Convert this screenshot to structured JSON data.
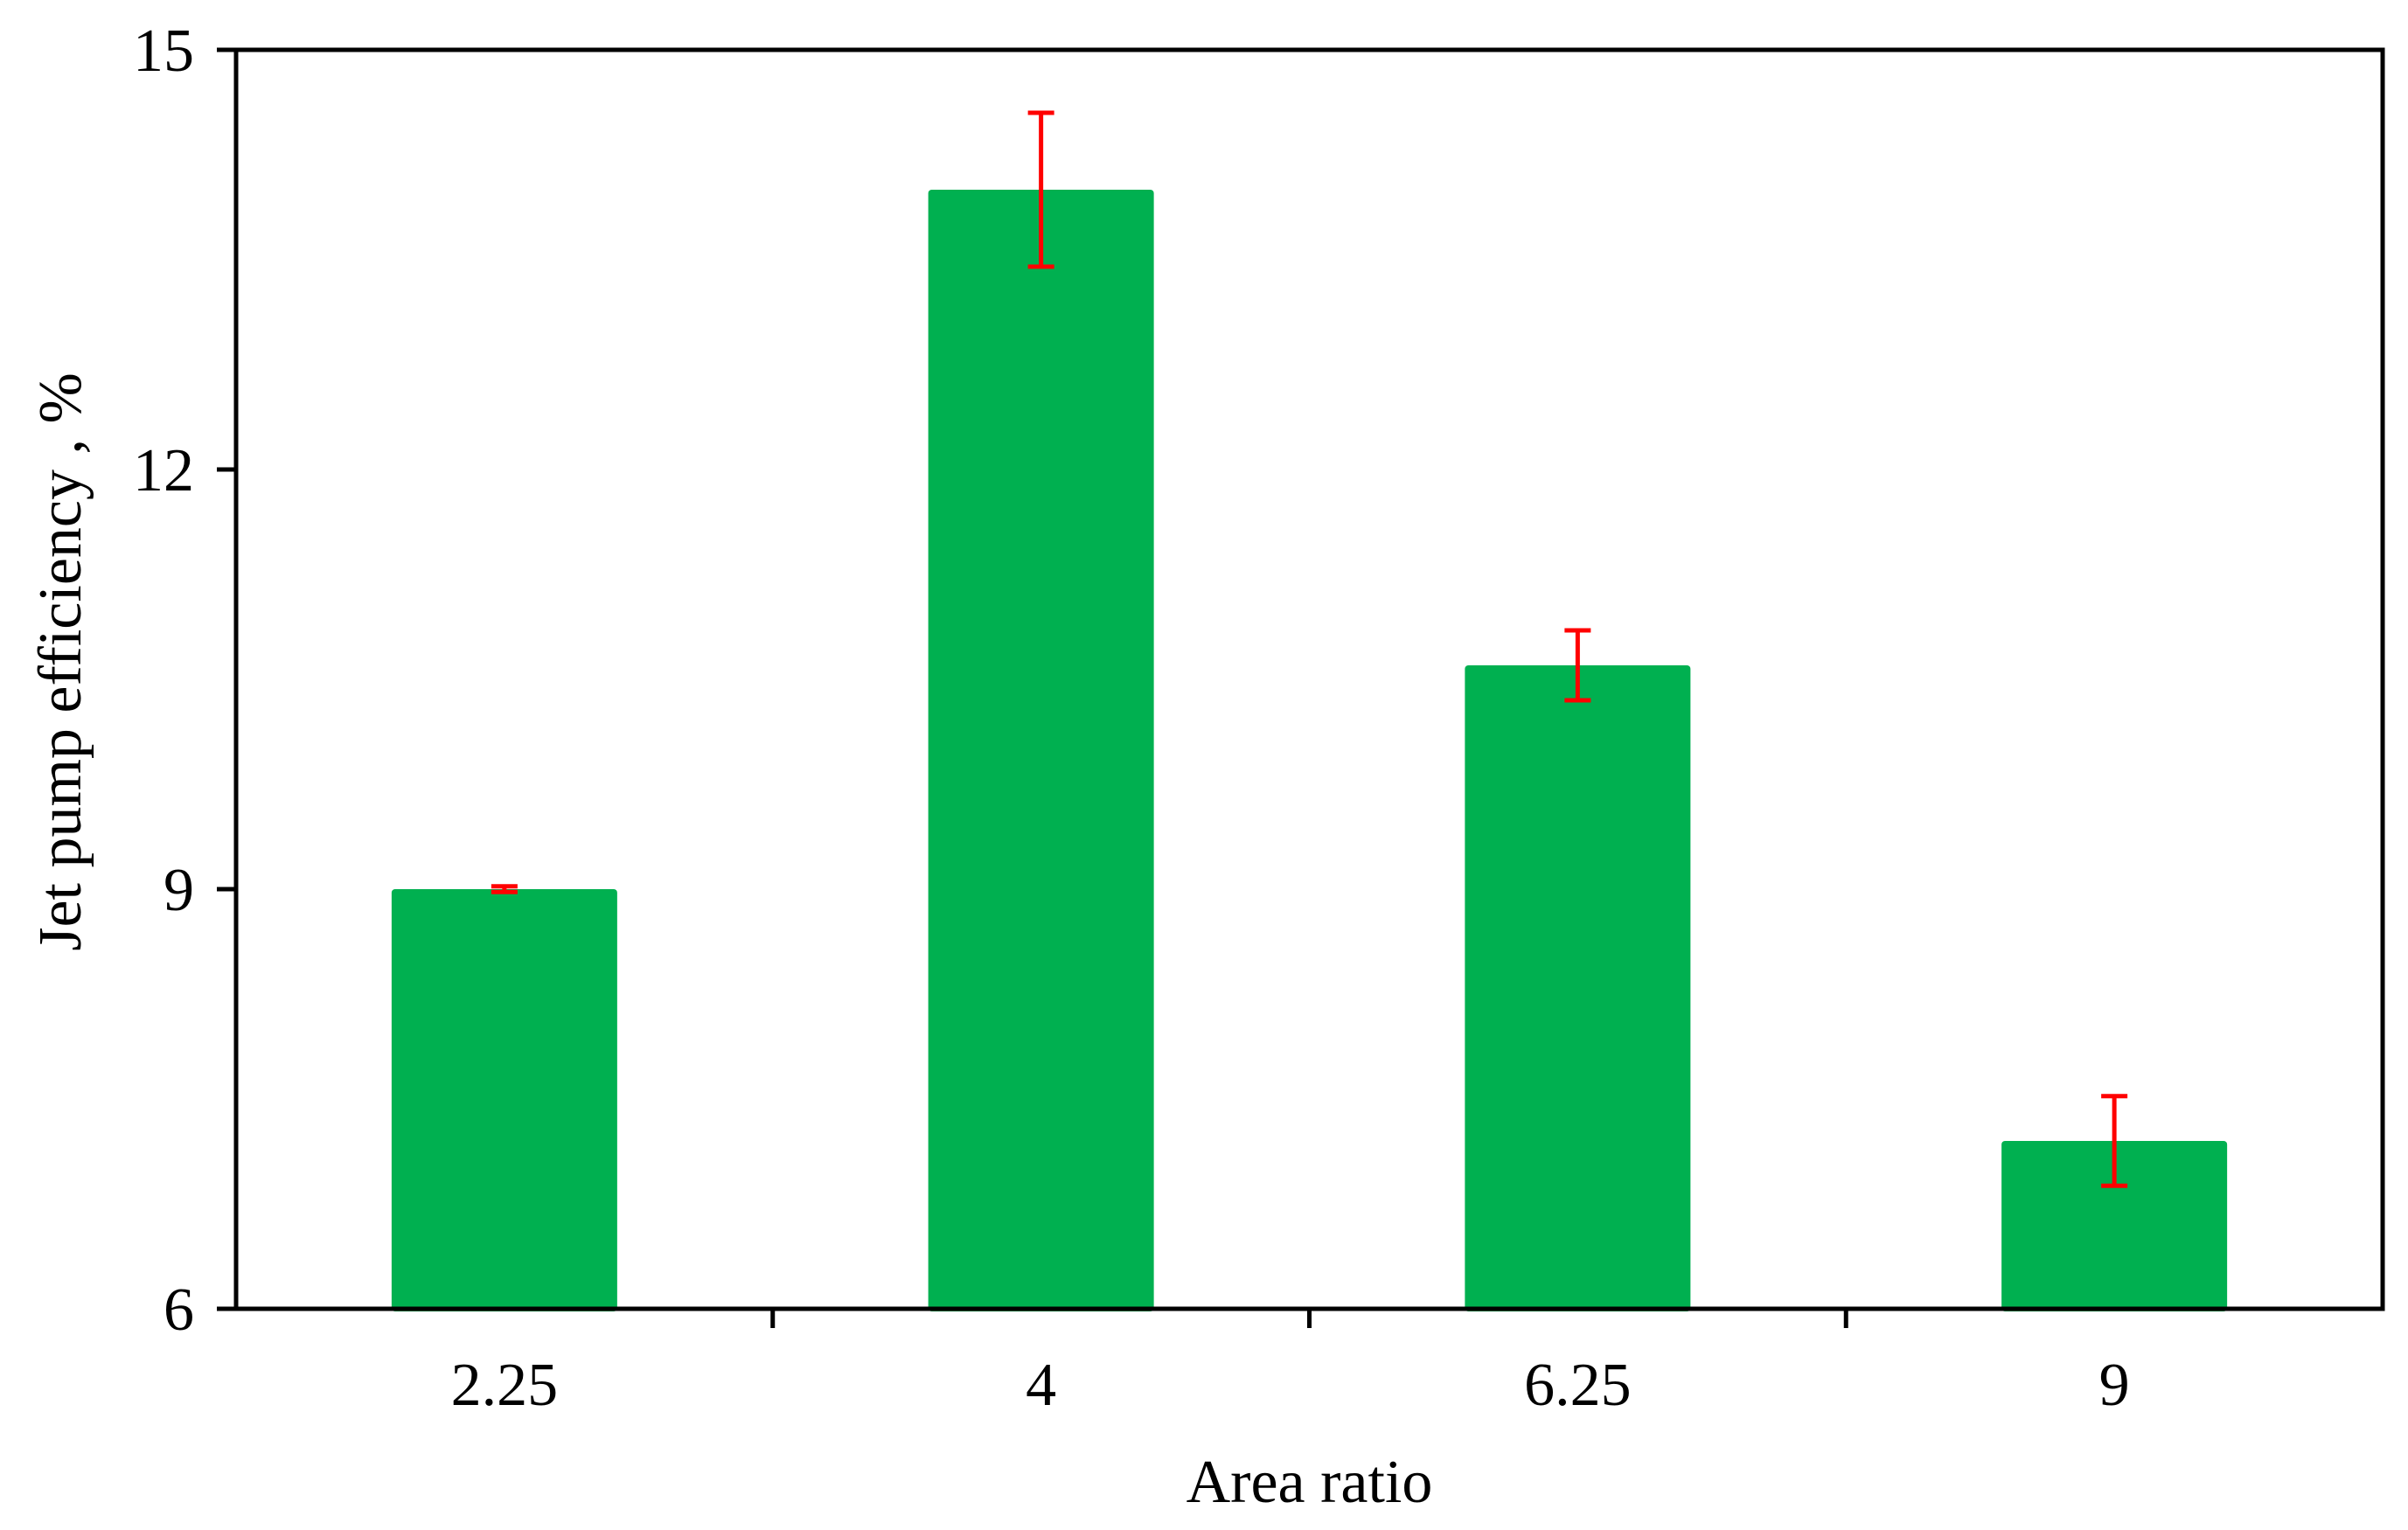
{
  "chart_data": {
    "type": "bar",
    "categories": [
      "2.25",
      "4",
      "6.25",
      "9"
    ],
    "values": [
      9.0,
      14.0,
      10.6,
      7.2
    ],
    "error": [
      0.02,
      0.55,
      0.25,
      0.32
    ],
    "xlabel": "Area ratio",
    "ylabel": "Jet pump efficiency , %",
    "ylim": [
      6,
      15
    ],
    "yticks": [
      6,
      9,
      12,
      15
    ],
    "grid": false,
    "legend": "none",
    "colors": {
      "bar": "#00b050",
      "error_bar": "#ff0000",
      "axis": "#000000"
    }
  }
}
